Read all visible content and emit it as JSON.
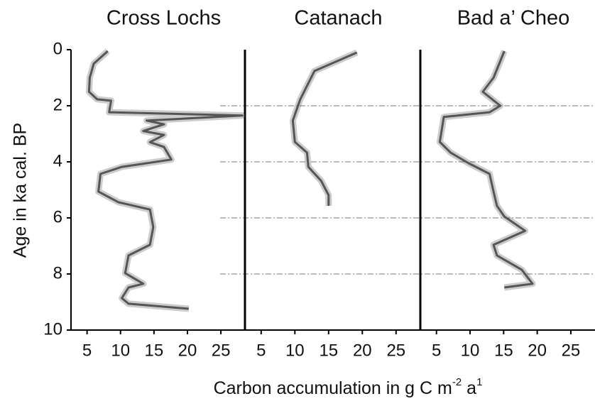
{
  "y_label": "Age in ka cal. BP",
  "x_label_parts": [
    "Carbon accumulation in g C m",
    "-2",
    " a",
    "1"
  ],
  "chart_data": [
    {
      "type": "line",
      "title": "Cross Lochs",
      "color": "#555555",
      "x": [
        8.1,
        6.0,
        5.4,
        5.3,
        6.5,
        8.6,
        8.3,
        28.2,
        13.9,
        16.5,
        13.4,
        16.5,
        14.4,
        16.5,
        17.6,
        10.2,
        7.0,
        6.7,
        9.7,
        14.4,
        14.9,
        14.4,
        11.2,
        10.7,
        13.4,
        11.2,
        10.2,
        11.2,
        20.2
      ],
      "values": [
        0.05,
        0.5,
        1.0,
        1.5,
        1.77,
        1.82,
        2.23,
        2.35,
        2.53,
        2.66,
        2.9,
        3.04,
        3.3,
        3.47,
        3.92,
        4.18,
        4.43,
        5.06,
        5.44,
        5.7,
        6.33,
        6.96,
        7.34,
        7.97,
        8.35,
        8.48,
        8.86,
        9.06,
        9.24
      ],
      "xlim": [
        2.6,
        28.6
      ],
      "xticks": [
        5,
        10,
        15,
        20,
        25
      ],
      "ylim": [
        0,
        10
      ],
      "y_inverted": true,
      "yticks": [
        0,
        2,
        4,
        6,
        8,
        10
      ],
      "grid": true
    },
    {
      "type": "line",
      "title": "Catanach",
      "color": "#555555",
      "x": [
        19.2,
        12.9,
        10.8,
        9.7,
        10.0,
        11.8,
        12.0,
        13.9,
        15.0,
        15.0
      ],
      "values": [
        0.1,
        0.76,
        1.77,
        2.53,
        3.29,
        3.67,
        4.18,
        4.68,
        5.19,
        5.57
      ],
      "xlim": [
        2.6,
        28.6
      ],
      "xticks": [
        5,
        10,
        15,
        20,
        25
      ],
      "ylim": [
        0,
        10
      ],
      "y_inverted": true
    },
    {
      "type": "line",
      "title": "Bad a’ Cheo",
      "color": "#555555",
      "x": [
        15.1,
        13.5,
        11.9,
        14.5,
        12.9,
        6.1,
        5.5,
        7.1,
        9.8,
        12.9,
        13.5,
        14.0,
        15.1,
        18.2,
        13.5,
        14.0,
        17.7,
        19.3,
        15.1
      ],
      "values": [
        0.05,
        1.0,
        1.5,
        2.0,
        2.23,
        2.4,
        3.29,
        3.67,
        4.05,
        4.43,
        5.06,
        5.57,
        5.95,
        6.46,
        6.96,
        7.34,
        7.85,
        8.35,
        8.48
      ],
      "xlim": [
        2.6,
        28.6
      ],
      "xticks": [
        5,
        10,
        15,
        20,
        25
      ],
      "ylim": [
        0,
        10
      ],
      "y_inverted": true
    }
  ]
}
